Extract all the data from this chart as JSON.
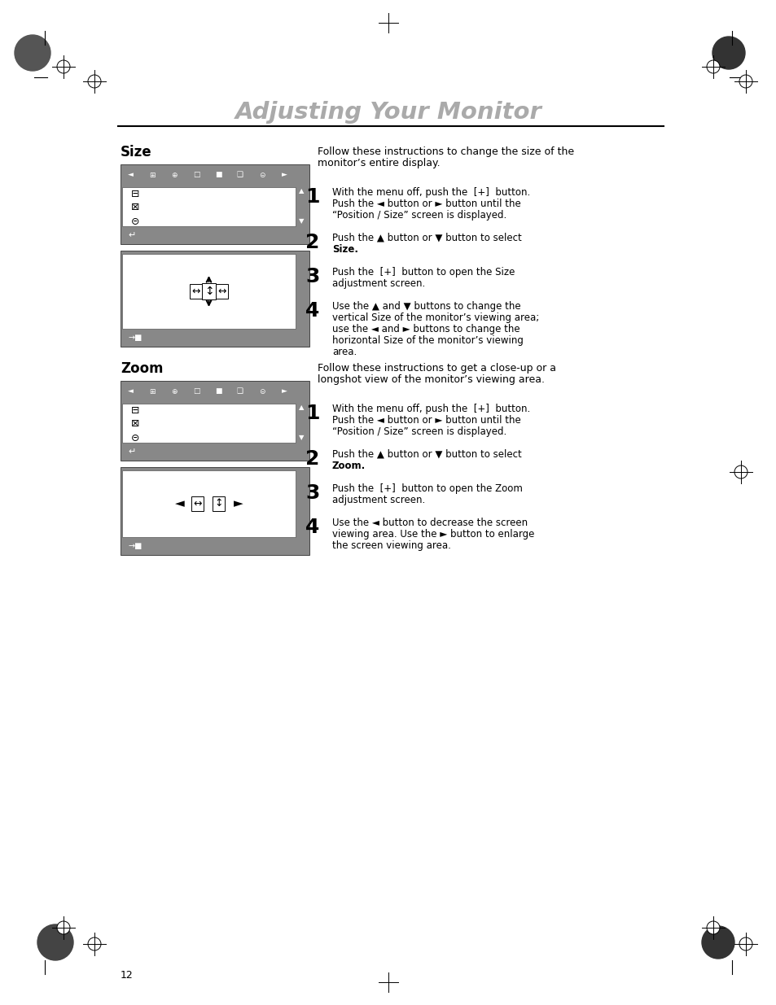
{
  "title": "Adjusting Your Monitor",
  "title_color": "#aaaaaa",
  "bg_color": "#ffffff",
  "section1_label": "Size",
  "section2_label": "Zoom",
  "section1_intro_line1": "Follow these instructions to change the size of the",
  "section1_intro_line2": "monitor’s entire display.",
  "section2_intro_line1": "Follow these instructions to get a close-up or a",
  "section2_intro_line2": "longshot view of the monitor’s viewing area.",
  "size_steps": [
    [
      "With the menu off, push the  [+]  button.",
      "Push the ◄ button or ► button until the",
      "“Position / Size” screen is displayed."
    ],
    [
      "Push the ▲ button or ▼ button to select",
      "Size."
    ],
    [
      "Push the  [+]  button to open the Size",
      "adjustment screen."
    ],
    [
      "Use the ▲ and ▼ buttons to change the",
      "vertical Size of the monitor’s viewing area;",
      "use the ◄ and ► buttons to change the",
      "horizontal Size of the monitor’s viewing",
      "area."
    ]
  ],
  "zoom_steps": [
    [
      "With the menu off, push the  [+]  button.",
      "Push the ◄ button or ► button until the",
      "“Position / Size” screen is displayed."
    ],
    [
      "Push the ▲ button or ▼ button to select",
      "Zoom."
    ],
    [
      "Push the  [+]  button to open the Zoom",
      "adjustment screen."
    ],
    [
      "Use the ◄ button to decrease the screen",
      "viewing area. Use the ► button to enlarge",
      "the screen viewing area."
    ]
  ],
  "size_step2_bold": "Size.",
  "zoom_step2_bold": "Zoom.",
  "panel_gray": "#888888",
  "page_num": "12"
}
